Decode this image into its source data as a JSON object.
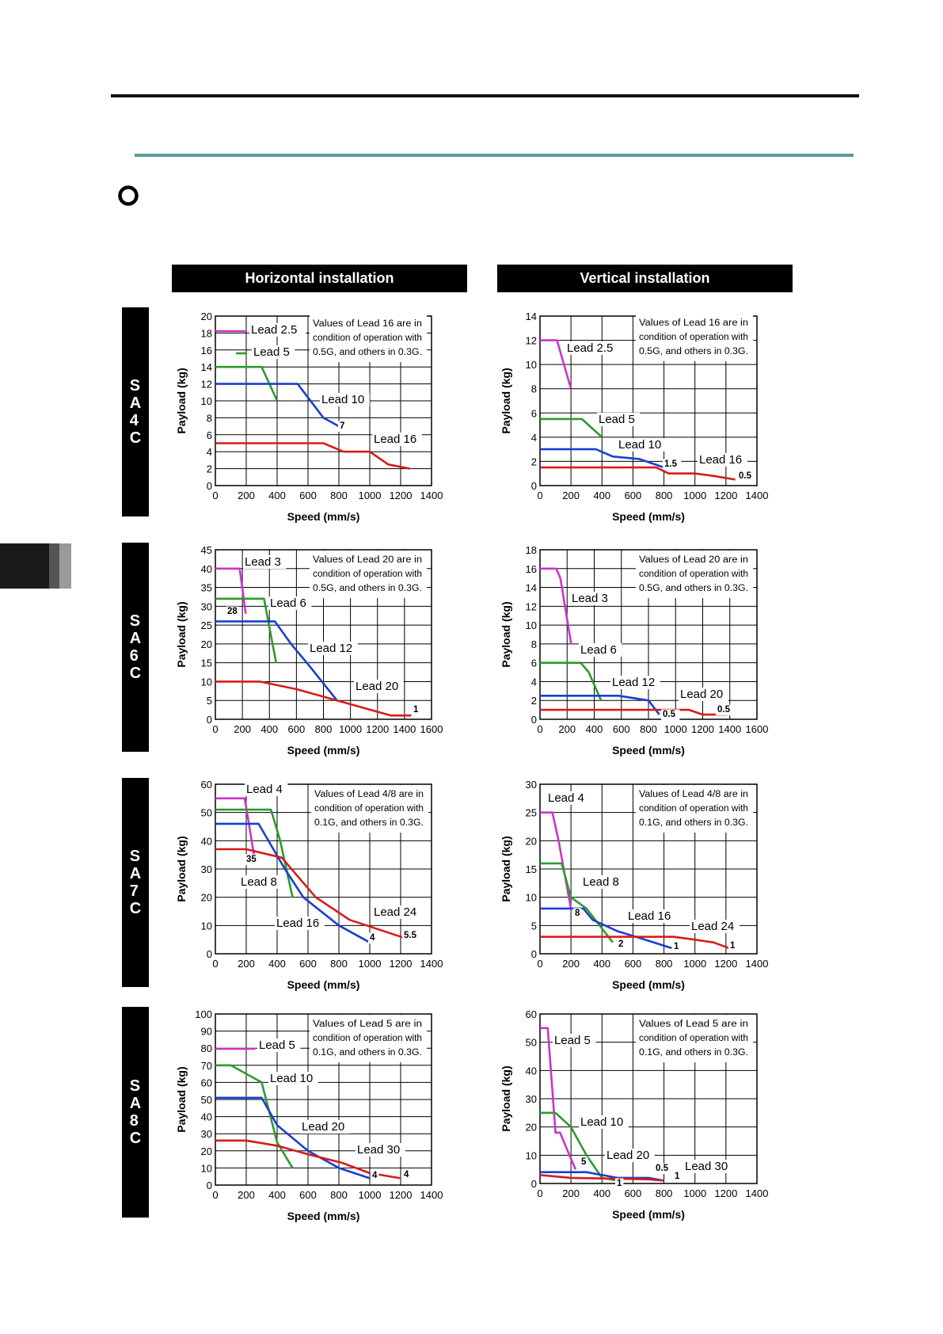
{
  "page": {
    "col_headers": [
      "Horizontal installation",
      "Vertical installation"
    ],
    "models": [
      "SA4C",
      "SA6C",
      "SA7C",
      "SA8C"
    ]
  },
  "colors": {
    "magenta": "#cc33cc",
    "green": "#2e9a2e",
    "blue": "#1a3fd0",
    "red": "#d41c1c",
    "teal_rule": "#5a9a96"
  },
  "chart_data": [
    {
      "id": "sa4c-h",
      "type": "line",
      "title": "",
      "xlabel": "Speed (mm/s)",
      "ylabel": "Payload (kg)",
      "xlim": [
        0,
        1400
      ],
      "ylim": [
        0,
        20
      ],
      "xticks": [
        0,
        200,
        400,
        600,
        800,
        1000,
        1200,
        1400
      ],
      "yticks": [
        0,
        2,
        4,
        6,
        8,
        10,
        12,
        14,
        16,
        18,
        20
      ],
      "note": [
        "Values of Lead 16 are in",
        "condition of operation with",
        "0.5G, and others in 0.3G."
      ],
      "series": [
        {
          "name": "Lead 2.5",
          "color": "magenta",
          "points": []
        },
        {
          "name": "Lead 5",
          "color": "green",
          "points": [
            [
              0,
              14
            ],
            [
              300,
              14
            ],
            [
              400,
              10
            ]
          ]
        },
        {
          "name": "Lead 10",
          "color": "blue",
          "points": [
            [
              0,
              12
            ],
            [
              533,
              12
            ],
            [
              700,
              8
            ],
            [
              800,
              7
            ]
          ]
        },
        {
          "name": "Lead 16",
          "color": "red",
          "points": [
            [
              0,
              5
            ],
            [
              700,
              5
            ],
            [
              830,
              4
            ],
            [
              1000,
              4
            ],
            [
              1120,
              2.5
            ],
            [
              1260,
              2
            ]
          ]
        }
      ],
      "labels": [
        "Lead 2.5",
        "Lead 5",
        "Lead 10",
        "Lead 16",
        "7"
      ]
    },
    {
      "id": "sa4c-v",
      "type": "line",
      "title": "",
      "xlabel": "Speed (mm/s)",
      "ylabel": "Payload (kg)",
      "xlim": [
        0,
        1400
      ],
      "ylim": [
        0,
        14
      ],
      "xticks": [
        0,
        200,
        400,
        600,
        800,
        1000,
        1200,
        1400
      ],
      "yticks": [
        0,
        2,
        4,
        6,
        8,
        10,
        12,
        14
      ],
      "note": [
        "Values of Lead 16 are in",
        "condition of operation with",
        "0.5G, and others in 0.3G."
      ],
      "series": [
        {
          "name": "Lead 2.5",
          "color": "magenta",
          "points": [
            [
              0,
              12
            ],
            [
              110,
              12
            ],
            [
              200,
              8
            ]
          ]
        },
        {
          "name": "Lead 5",
          "color": "green",
          "points": [
            [
              0,
              5.5
            ],
            [
              270,
              5.5
            ],
            [
              400,
              4
            ]
          ]
        },
        {
          "name": "Lead 10",
          "color": "blue",
          "points": [
            [
              0,
              3
            ],
            [
              360,
              3
            ],
            [
              470,
              2.4
            ],
            [
              640,
              2.2
            ],
            [
              800,
              1.5
            ]
          ]
        },
        {
          "name": "Lead 16",
          "color": "red",
          "points": [
            [
              0,
              1.5
            ],
            [
              750,
              1.5
            ],
            [
              830,
              1
            ],
            [
              1000,
              1
            ],
            [
              1120,
              0.8
            ],
            [
              1260,
              0.5
            ]
          ]
        }
      ],
      "labels": [
        "Lead 2.5",
        "Lead 5",
        "Lead 10",
        "Lead 16",
        "1.5",
        "0.5"
      ]
    },
    {
      "id": "sa6c-h",
      "type": "line",
      "title": "",
      "xlabel": "Speed (mm/s)",
      "ylabel": "Payload (kg)",
      "xlim": [
        0,
        1600
      ],
      "ylim": [
        0,
        45
      ],
      "xticks": [
        0,
        200,
        400,
        600,
        800,
        1000,
        1200,
        1400,
        1600
      ],
      "yticks": [
        0,
        5,
        10,
        15,
        20,
        25,
        30,
        35,
        40,
        45
      ],
      "note": [
        "Values of Lead 20 are in",
        "condition of operation with",
        "0.5G, and others in 0.3G."
      ],
      "series": [
        {
          "name": "Lead 3",
          "color": "magenta",
          "points": [
            [
              0,
              40
            ],
            [
              180,
              40
            ],
            [
              225,
              28
            ]
          ]
        },
        {
          "name": "Lead 6",
          "color": "green",
          "points": [
            [
              0,
              32
            ],
            [
              360,
              32
            ],
            [
              450,
              15
            ]
          ]
        },
        {
          "name": "Lead 12",
          "color": "blue",
          "points": [
            [
              0,
              26
            ],
            [
              440,
              26
            ],
            [
              560,
              20
            ],
            [
              700,
              14
            ],
            [
              900,
              5
            ]
          ]
        },
        {
          "name": "Lead 20",
          "color": "red",
          "points": [
            [
              0,
              10
            ],
            [
              330,
              10
            ],
            [
              600,
              8
            ],
            [
              900,
              5
            ],
            [
              1100,
              3
            ],
            [
              1300,
              1
            ],
            [
              1450,
              1
            ]
          ]
        }
      ],
      "labels": [
        "Lead 3",
        "Lead 6",
        "Lead 12",
        "Lead 20",
        "28",
        "1"
      ]
    },
    {
      "id": "sa6c-v",
      "type": "line",
      "title": "",
      "xlabel": "Speed (mm/s)",
      "ylabel": "Payload (kg)",
      "xlim": [
        0,
        1600
      ],
      "ylim": [
        0,
        18
      ],
      "xticks": [
        0,
        200,
        400,
        600,
        800,
        1000,
        1200,
        1400,
        1600
      ],
      "yticks": [
        0,
        2,
        4,
        6,
        8,
        10,
        12,
        14,
        16,
        18
      ],
      "note": [
        "Values of Lead 20 are in",
        "condition of operation with",
        "0.5G, and others in 0.3G."
      ],
      "series": [
        {
          "name": "Lead 3",
          "color": "magenta",
          "points": [
            [
              0,
              16
            ],
            [
              120,
              16
            ],
            [
              150,
              15
            ],
            [
              230,
              8
            ]
          ]
        },
        {
          "name": "Lead 6",
          "color": "green",
          "points": [
            [
              0,
              6
            ],
            [
              300,
              6
            ],
            [
              360,
              5
            ],
            [
              450,
              2
            ]
          ]
        },
        {
          "name": "Lead 12",
          "color": "blue",
          "points": [
            [
              0,
              2.5
            ],
            [
              580,
              2.5
            ],
            [
              800,
              2
            ],
            [
              880,
              0.5
            ]
          ]
        },
        {
          "name": "Lead 20",
          "color": "red",
          "points": [
            [
              0,
              1
            ],
            [
              800,
              1
            ],
            [
              1100,
              1
            ],
            [
              1200,
              0.5
            ],
            [
              1380,
              0.5
            ]
          ]
        }
      ],
      "labels": [
        "Lead 3",
        "Lead 6",
        "Lead 12",
        "Lead 20",
        "0.5",
        "0.5"
      ]
    },
    {
      "id": "sa7c-h",
      "type": "line",
      "title": "",
      "xlabel": "Speed (mm/s)",
      "ylabel": "Payload (kg)",
      "xlim": [
        0,
        1400
      ],
      "ylim": [
        0,
        60
      ],
      "xticks": [
        0,
        200,
        400,
        600,
        800,
        1000,
        1200,
        1400
      ],
      "yticks": [
        0,
        10,
        20,
        30,
        40,
        50,
        60
      ],
      "note": [
        "Values of Lead 4/8 are in",
        "condition of operation with",
        "0.1G, and others in 0.3G."
      ],
      "series": [
        {
          "name": "Lead 4",
          "color": "magenta",
          "points": [
            [
              0,
              55
            ],
            [
              190,
              55
            ],
            [
              250,
              35
            ]
          ]
        },
        {
          "name": "Lead 8",
          "color": "green",
          "points": [
            [
              0,
              51
            ],
            [
              360,
              51
            ],
            [
              420,
              40
            ],
            [
              500,
              20
            ]
          ]
        },
        {
          "name": "Lead 16",
          "color": "blue",
          "points": [
            [
              0,
              46
            ],
            [
              280,
              46
            ],
            [
              450,
              30
            ],
            [
              570,
              20
            ],
            [
              800,
              10
            ],
            [
              1000,
              4
            ]
          ]
        },
        {
          "name": "Lead 24",
          "color": "red",
          "points": [
            [
              0,
              37
            ],
            [
              200,
              37
            ],
            [
              430,
              34
            ],
            [
              650,
              20
            ],
            [
              870,
              12
            ],
            [
              1230,
              5.5
            ]
          ]
        }
      ],
      "labels": [
        "Lead 4",
        "Lead 8",
        "Lead 16",
        "Lead 24",
        "35",
        "4",
        "5.5"
      ]
    },
    {
      "id": "sa7c-v",
      "type": "line",
      "title": "",
      "xlabel": "Speed (mm/s)",
      "ylabel": "Payload (kg)",
      "xlim": [
        0,
        1400
      ],
      "ylim": [
        0,
        30
      ],
      "xticks": [
        0,
        200,
        400,
        600,
        800,
        1000,
        1200,
        1400
      ],
      "yticks": [
        0,
        5,
        10,
        15,
        20,
        25,
        30
      ],
      "note": [
        "Values of Lead 4/8 are in",
        "condition of operation with",
        "0.1G, and others in 0.3G."
      ],
      "series": [
        {
          "name": "Lead 4",
          "color": "magenta",
          "points": [
            [
              0,
              25
            ],
            [
              80,
              25
            ],
            [
              120,
              20
            ],
            [
              160,
              14
            ],
            [
              200,
              8
            ]
          ]
        },
        {
          "name": "Lead 8",
          "color": "green",
          "points": [
            [
              0,
              16
            ],
            [
              140,
              16
            ],
            [
              200,
              10
            ],
            [
              300,
              8
            ],
            [
              470,
              2
            ]
          ]
        },
        {
          "name": "Lead 16",
          "color": "blue",
          "points": [
            [
              0,
              8
            ],
            [
              280,
              8
            ],
            [
              340,
              6
            ],
            [
              500,
              4
            ],
            [
              620,
              3
            ],
            [
              850,
              1
            ]
          ]
        },
        {
          "name": "Lead 24",
          "color": "red",
          "points": [
            [
              0,
              3
            ],
            [
              860,
              3
            ],
            [
              1000,
              2.5
            ],
            [
              1120,
              2
            ],
            [
              1220,
              1
            ]
          ]
        }
      ],
      "labels": [
        "Lead 4",
        "Lead 8",
        "Lead 16",
        "Lead 24",
        "8",
        "2",
        "1",
        "1"
      ]
    },
    {
      "id": "sa8c-h",
      "type": "line",
      "title": "",
      "xlabel": "Speed (mm/s)",
      "ylabel": "Payload (kg)",
      "xlim": [
        0,
        1400
      ],
      "ylim": [
        0,
        100
      ],
      "xticks": [
        0,
        200,
        400,
        600,
        800,
        1000,
        1200,
        1400
      ],
      "yticks": [
        0,
        10,
        20,
        30,
        40,
        50,
        60,
        70,
        80,
        90,
        100
      ],
      "note": [
        "Values of Lead 5 are in",
        "condition of operation with",
        "0.1G, and others in 0.3G."
      ],
      "series": [
        {
          "name": "Lead 5",
          "color": "magenta",
          "points": []
        },
        {
          "name": "Lead 10",
          "color": "green",
          "points": [
            [
              0,
              70
            ],
            [
              100,
              70
            ],
            [
              300,
              60
            ],
            [
              400,
              25
            ],
            [
              500,
              10
            ]
          ]
        },
        {
          "name": "Lead 20",
          "color": "blue",
          "points": [
            [
              0,
              51
            ],
            [
              300,
              51
            ],
            [
              400,
              35
            ],
            [
              600,
              20
            ],
            [
              800,
              10
            ],
            [
              1000,
              4
            ]
          ]
        },
        {
          "name": "Lead 30",
          "color": "red",
          "points": [
            [
              0,
              26
            ],
            [
              200,
              26
            ],
            [
              400,
              23
            ],
            [
              600,
              18
            ],
            [
              820,
              13
            ],
            [
              1000,
              7
            ],
            [
              1200,
              4
            ]
          ]
        }
      ],
      "labels": [
        "Lead 5",
        "Lead 10",
        "Lead 20",
        "Lead 30",
        "4",
        "4"
      ]
    },
    {
      "id": "sa8c-v",
      "type": "line",
      "title": "",
      "xlabel": "Speed (mm/s)",
      "ylabel": "Payload (kg)",
      "xlim": [
        0,
        1400
      ],
      "ylim": [
        0,
        60
      ],
      "xticks": [
        0,
        200,
        400,
        600,
        800,
        1000,
        1200,
        1400
      ],
      "yticks": [
        0,
        10,
        20,
        30,
        40,
        50,
        60
      ],
      "note": [
        "Values of Lead 5 are in",
        "condition of operation with",
        "0.1G, and others in 0.3G."
      ],
      "series": [
        {
          "name": "Lead 5",
          "color": "magenta",
          "points": [
            [
              0,
              55
            ],
            [
              50,
              55
            ],
            [
              100,
              18
            ],
            [
              130,
              18
            ],
            [
              190,
              10
            ],
            [
              230,
              5
            ]
          ]
        },
        {
          "name": "Lead 10",
          "color": "green",
          "points": [
            [
              0,
              25
            ],
            [
              100,
              25
            ],
            [
              200,
              20
            ],
            [
              300,
              10
            ],
            [
              400,
              2
            ],
            [
              500,
              1
            ]
          ]
        },
        {
          "name": "Lead 20",
          "color": "blue",
          "points": [
            [
              0,
              4
            ],
            [
              300,
              4
            ],
            [
              500,
              2
            ],
            [
              700,
              2
            ],
            [
              800,
              1
            ]
          ]
        },
        {
          "name": "Lead 30",
          "color": "red",
          "points": [
            [
              0,
              3
            ],
            [
              200,
              2
            ],
            [
              700,
              1.5
            ],
            [
              800,
              1
            ]
          ]
        }
      ],
      "labels": [
        "Lead 5",
        "Lead 10",
        "Lead 20",
        "Lead 30",
        "5",
        "1",
        "0.5",
        "1"
      ]
    }
  ]
}
